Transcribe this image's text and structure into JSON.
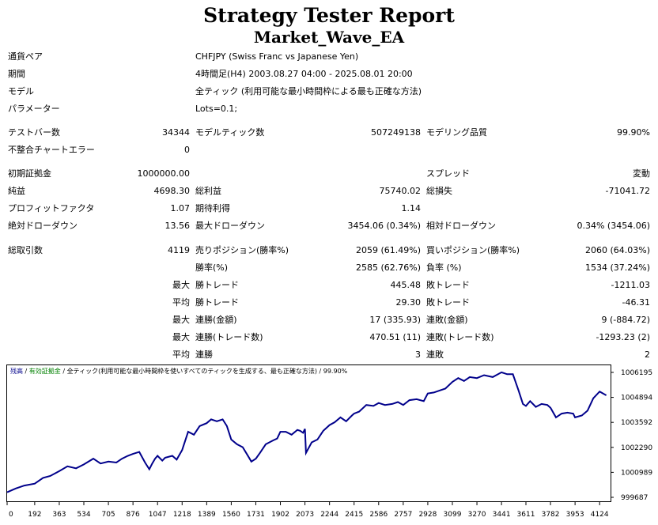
{
  "header": {
    "title": "Strategy Tester Report",
    "ea_name": "Market_Wave_EA"
  },
  "info": [
    {
      "label": "通貨ペア",
      "value": "CHFJPY (Swiss Franc vs Japanese Yen)"
    },
    {
      "label": "期間",
      "value": "4時間足(H4) 2003.08.27 04:00 - 2025.08.01 20:00"
    },
    {
      "label": "モデル",
      "value": "全ティック (利用可能な最小時間枠による最も正確な方法)"
    },
    {
      "label": "パラメーター",
      "value": "Lots=0.1;"
    }
  ],
  "stats": {
    "bars_label": "テストバー数",
    "bars": "34344",
    "ticks_label": "モデルティック数",
    "ticks": "507249138",
    "quality_label": "モデリング品質",
    "quality": "99.90%",
    "mismatch_label": "不整合チャートエラー",
    "mismatch": "0",
    "deposit_label": "初期証拠金",
    "deposit": "1000000.00",
    "spread_label": "スプレッド",
    "spread": "変動",
    "net_label": "純益",
    "net": "4698.30",
    "gross_profit_label": "総利益",
    "gross_profit": "75740.02",
    "gross_loss_label": "総損失",
    "gross_loss": "-71041.72",
    "pf_label": "プロフィットファクタ",
    "pf": "1.07",
    "exp_label": "期待利得",
    "exp": "1.14",
    "abs_dd_label": "絶対ドローダウン",
    "abs_dd": "13.56",
    "max_dd_label": "最大ドローダウン",
    "max_dd": "3454.06 (0.34%)",
    "rel_dd_label": "相対ドローダウン",
    "rel_dd": "0.34% (3454.06)",
    "total_trades_label": "総取引数",
    "total_trades": "4119",
    "short_label": "売りポジション(勝率%)",
    "short": "2059 (61.49%)",
    "long_label": "買いポジション(勝率%)",
    "long": "2060 (64.03%)",
    "win_rate_label": "勝率(%)",
    "win_rate": "2585 (62.76%)",
    "loss_rate_label": "負率 (%)",
    "loss_rate": "1534 (37.24%)",
    "q_max": "最大",
    "q_avg": "平均",
    "largest_win_label": "勝トレード",
    "largest_win": "445.48",
    "largest_loss_label": "敗トレード",
    "largest_loss": "-1211.03",
    "avg_win_label": "勝トレード",
    "avg_win": "29.30",
    "avg_loss_label": "敗トレード",
    "avg_loss": "-46.31",
    "max_consec_wins_money_label": "連勝(金額)",
    "max_consec_wins_money": "17 (335.93)",
    "max_consec_losses_money_label": "連敗(金額)",
    "max_consec_losses_money": "9 (-884.72)",
    "max_consec_profit_label": "連勝(トレード数)",
    "max_consec_profit": "470.51 (11)",
    "max_consec_loss_label": "連敗(トレード数)",
    "max_consec_loss": "-1293.23 (2)",
    "avg_consec_wins_label": "連勝",
    "avg_consec_wins": "3",
    "avg_consec_losses_label": "連敗",
    "avg_consec_losses": "2"
  },
  "chart_data": {
    "type": "line",
    "legend": {
      "balance": "残高",
      "sep1": " / ",
      "equity": "有効証拠金",
      "sep2": " / ",
      "model": "全ティック(利用可能な最小時間枠を使いすべてのティックを生成する、最も正確な方法)",
      "sep3": " / ",
      "quality": "99.90%"
    },
    "x_ticks": [
      "0",
      "192",
      "363",
      "534",
      "705",
      "876",
      "1047",
      "1218",
      "1389",
      "1560",
      "1731",
      "1902",
      "2073",
      "2244",
      "2415",
      "2586",
      "2757",
      "2928",
      "3099",
      "3270",
      "3441",
      "3611",
      "3782",
      "3953",
      "4124"
    ],
    "y_ticks": [
      "1006195",
      "1004894",
      "1003592",
      "1002290",
      "1000989",
      "999687"
    ],
    "ylim": [
      999687,
      1006195
    ],
    "xlim": [
      0,
      4200
    ],
    "line_color": "#00008b",
    "series": [
      {
        "x": [
          0,
          60,
          120,
          192,
          250,
          300,
          363,
          420,
          480,
          534,
          600,
          650,
          705,
          760,
          800,
          840,
          876,
          920,
          960,
          990,
          1010,
          1030,
          1047,
          1080,
          1100,
          1150,
          1180,
          1218,
          1260,
          1300,
          1340,
          1389,
          1420,
          1460,
          1500,
          1530,
          1560,
          1600,
          1640,
          1680,
          1700,
          1731,
          1760,
          1800,
          1850,
          1880,
          1902,
          1940,
          1980,
          2020,
          2040,
          2060,
          2073,
          2080,
          2120,
          2160,
          2200,
          2244,
          2280,
          2320,
          2360,
          2400,
          2415,
          2450,
          2500,
          2550,
          2586,
          2630,
          2680,
          2720,
          2757,
          2800,
          2850,
          2900,
          2928,
          2970,
          3010,
          3050,
          3099,
          3140,
          3180,
          3220,
          3270,
          3320,
          3380,
          3441,
          3480,
          3520,
          3560,
          3590,
          3611,
          3640,
          3680,
          3720,
          3760,
          3782,
          3820,
          3860,
          3900,
          3940,
          3953,
          4000,
          4040,
          4080,
          4124,
          4170
        ],
        "y": [
          999950,
          1000150,
          1000300,
          1000400,
          1000700,
          1000800,
          1001050,
          1001300,
          1001200,
          1001400,
          1001700,
          1001450,
          1001550,
          1001500,
          1001700,
          1001850,
          1001950,
          1002050,
          1001500,
          1001150,
          1001450,
          1001700,
          1001850,
          1001600,
          1001750,
          1001850,
          1001650,
          1002150,
          1003100,
          1002950,
          1003400,
          1003550,
          1003750,
          1003650,
          1003750,
          1003400,
          1002700,
          1002450,
          1002300,
          1001800,
          1001550,
          1001700,
          1002000,
          1002450,
          1002650,
          1002750,
          1003100,
          1003100,
          1002950,
          1003200,
          1003150,
          1003050,
          1003250,
          1002000,
          1002550,
          1002700,
          1003150,
          1003450,
          1003600,
          1003850,
          1003650,
          1003950,
          1004050,
          1004150,
          1004500,
          1004450,
          1004600,
          1004500,
          1004550,
          1004650,
          1004500,
          1004750,
          1004800,
          1004700,
          1005100,
          1005150,
          1005250,
          1005350,
          1005700,
          1005900,
          1005750,
          1005950,
          1005900,
          1006050,
          1005950,
          1006200,
          1006100,
          1006100,
          1005250,
          1004550,
          1004450,
          1004700,
          1004400,
          1004550,
          1004500,
          1004350,
          1003850,
          1004050,
          1004100,
          1004050,
          1003850,
          1003950,
          1004200,
          1004850,
          1005200,
          1005000
        ]
      }
    ]
  }
}
